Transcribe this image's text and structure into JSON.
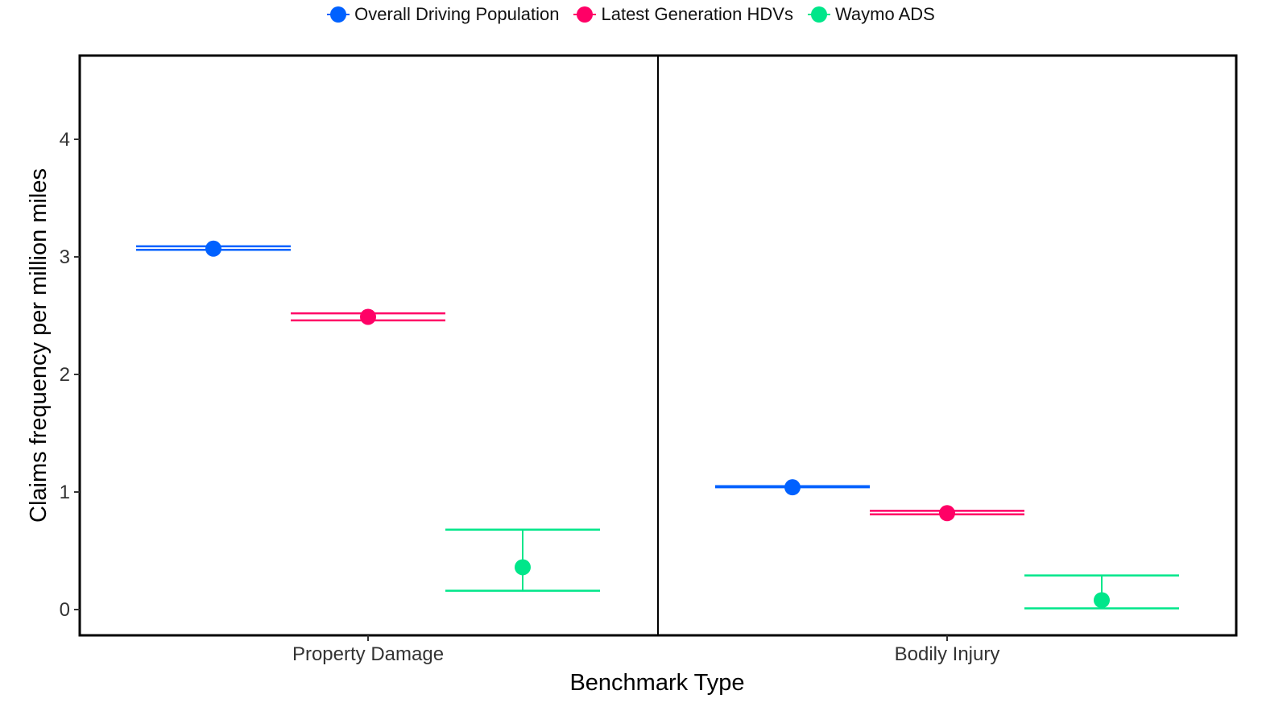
{
  "chart_data": {
    "type": "scatter",
    "subtype": "point-with-errorbars",
    "xlabel": "Benchmark Type",
    "ylabel": "Claims frequency per million miles",
    "categories": [
      "Property Damage",
      "Bodily Injury"
    ],
    "ylim": [
      -0.2,
      4.7
    ],
    "yticks": [
      0,
      1,
      2,
      3,
      4
    ],
    "grid": false,
    "legend_position": "top",
    "series": [
      {
        "name": "Overall Driving Population",
        "color": "#0061FF",
        "values": [
          3.07,
          1.04
        ],
        "lower": [
          3.06,
          1.04
        ],
        "upper": [
          3.09,
          1.05
        ]
      },
      {
        "name": "Latest Generation HDVs",
        "color": "#FF0066",
        "values": [
          2.49,
          0.82
        ],
        "lower": [
          2.46,
          0.81
        ],
        "upper": [
          2.52,
          0.84
        ]
      },
      {
        "name": "Waymo ADS",
        "color": "#00E68A",
        "values": [
          0.36,
          0.08
        ],
        "lower": [
          0.16,
          0.01
        ],
        "upper": [
          0.68,
          0.29
        ]
      }
    ]
  }
}
